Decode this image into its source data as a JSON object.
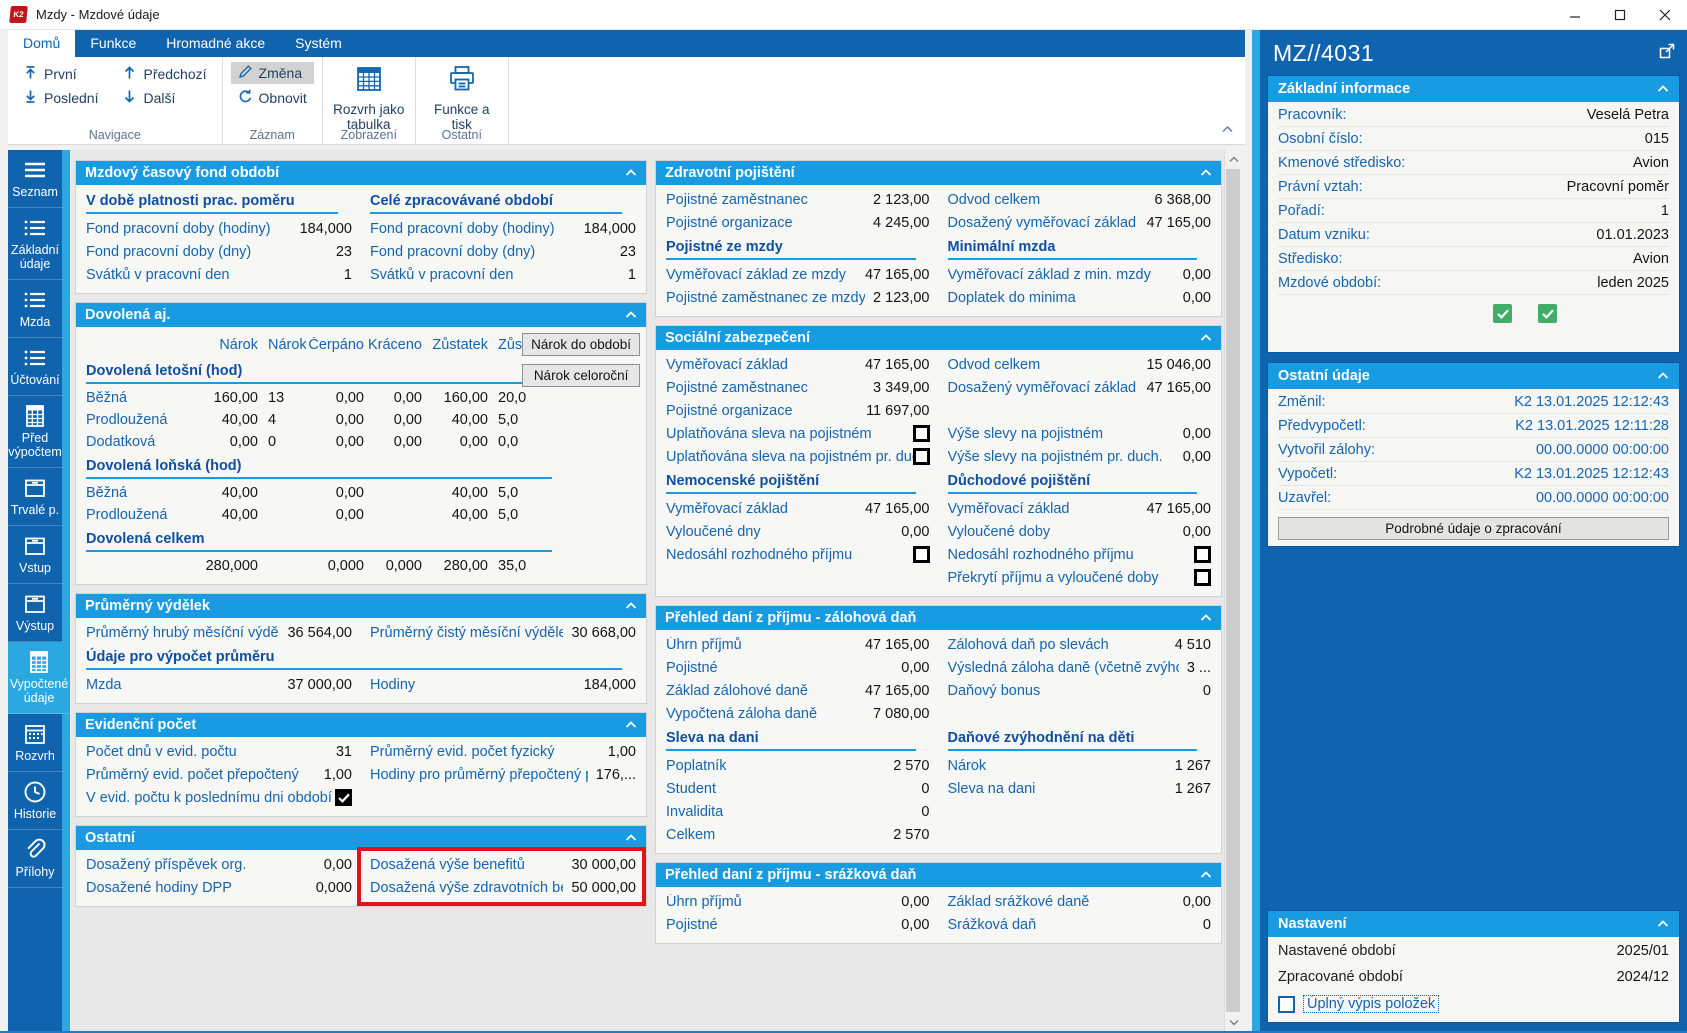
{
  "window": {
    "title": "Mzdy - Mzdové údaje",
    "logo": "K2"
  },
  "tabs": [
    "Domů",
    "Funkce",
    "Hromadné akce",
    "Systém"
  ],
  "active_tab": "Domů",
  "ribbon": {
    "nav_first": "První",
    "nav_last": "Poslední",
    "nav_prev": "Předchozí",
    "nav_next": "Další",
    "change": "Změna",
    "refresh": "Obnovit",
    "layout_table": "Rozvrh jako tabulka",
    "func_print": "Funkce a tisk",
    "groups": {
      "navigace": "Navigace",
      "zaznam": "Záznam",
      "zobrazeni": "Zobrazení",
      "ostatni": "Ostatní"
    }
  },
  "sidebar": {
    "items": [
      {
        "label": "Seznam",
        "icon": "menu-icon",
        "selected": false
      },
      {
        "label": "Základní údaje",
        "icon": "list-icon",
        "selected": false
      },
      {
        "label": "Mzda",
        "icon": "list-icon",
        "selected": false
      },
      {
        "label": "Účtování",
        "icon": "list-icon",
        "selected": false
      },
      {
        "label": "Před výpočtem",
        "icon": "calculator-icon",
        "selected": false
      },
      {
        "label": "Trvalé p.",
        "icon": "box-icon",
        "selected": false
      },
      {
        "label": "Vstup",
        "icon": "box-icon",
        "selected": false
      },
      {
        "label": "Výstup",
        "icon": "box-icon",
        "selected": false
      },
      {
        "label": "Vypočtené údaje",
        "icon": "calculator-icon",
        "selected": true
      },
      {
        "label": "Rozvrh",
        "icon": "calendar-icon",
        "selected": false
      },
      {
        "label": "Historie",
        "icon": "clock-icon",
        "selected": false
      },
      {
        "label": "Přílohy",
        "icon": "paperclip-icon",
        "selected": false
      }
    ]
  },
  "panels": {
    "fond": {
      "title": "Mzdový časový fond období",
      "left_heading": "V době platnosti prac. poměru",
      "right_heading": "Celé zpracovávané období",
      "left_rows": [
        {
          "l": "Fond pracovní doby (hodiny)",
          "v": "184,000"
        },
        {
          "l": "Fond pracovní doby (dny)",
          "v": "23"
        },
        {
          "l": "Svátků v pracovní den",
          "v": "1"
        }
      ],
      "right_rows": [
        {
          "l": "Fond pracovní doby (hodiny)",
          "v": "184,000"
        },
        {
          "l": "Fond pracovní doby (dny)",
          "v": "23"
        },
        {
          "l": "Svátků v pracovní den",
          "v": "1"
        }
      ]
    },
    "dovolena": {
      "title": "Dovolená aj.",
      "header": [
        [
          "",
          "Nárok",
          "Nárok do",
          "Čerpáno",
          "Kráceno",
          "Zůstatek",
          "Zůstatek (cca dny)"
        ]
      ],
      "buttons": {
        "do_obdobi": "Nárok do období",
        "celorocni": "Nárok celoroční"
      },
      "letosni_heading": "Dovolená letošní (hod)",
      "letosni": [
        [
          "Běžná",
          "160,00",
          "13",
          "0,00",
          "0,00",
          "160,00",
          "20,0"
        ],
        [
          "Prodloužená",
          "40,00",
          "4",
          "0,00",
          "0,00",
          "40,00",
          "5,0"
        ],
        [
          "Dodatková",
          "0,00",
          "0",
          "0,00",
          "0,00",
          "0,00",
          "0,0"
        ]
      ],
      "lonska_heading": "Dovolená loňská (hod)",
      "lonska": [
        [
          "Běžná",
          "40,00",
          "",
          "0,00",
          "",
          "40,00",
          "5,0"
        ],
        [
          "Prodloužená",
          "40,00",
          "",
          "0,00",
          "",
          "40,00",
          "5,0"
        ]
      ],
      "celkem_heading": "Dovolená celkem",
      "celkem": [
        [
          "",
          "280,000",
          "",
          "0,000",
          "0,000",
          "280,00",
          "35,0"
        ]
      ]
    },
    "prumerny": {
      "title": "Průměrný výdělek",
      "top_left": [
        {
          "l": "Průměrný hrubý měsíční výdělek",
          "v": "36 564,00"
        }
      ],
      "top_right": [
        {
          "l": "Průměrný čistý měsíční výdělek",
          "v": "30 668,00"
        }
      ],
      "sub_heading": "Údaje pro výpočet průměru",
      "sub_left": [
        {
          "l": "Mzda",
          "v": "37 000,00"
        }
      ],
      "sub_right": [
        {
          "l": "Hodiny",
          "v": "184,000"
        }
      ]
    },
    "evidencni": {
      "title": "Evidenční počet",
      "left_rows": [
        {
          "l": "Počet dnů v evid. počtu",
          "v": "31"
        },
        {
          "l": "Průměrný evid. počet přepočtený",
          "v": "1,00"
        },
        {
          "l": "V evid. počtu k poslednímu dni období",
          "cb": "black-checked"
        }
      ],
      "right_rows": [
        {
          "l": "Průměrný evid. počet fyzický",
          "v": "1,00"
        },
        {
          "l": "Hodiny pro průměrný přepočtený počet",
          "v": "176,..."
        }
      ]
    },
    "ostatni": {
      "title": "Ostatní",
      "left_rows": [
        {
          "l": "Dosažený příspěvek org.",
          "v": "0,00"
        },
        {
          "l": "Dosažené hodiny DPP",
          "v": "0,000"
        }
      ],
      "right_rows": [
        {
          "l": "Dosažená výše benefitů",
          "v": "30 000,00"
        },
        {
          "l": "Dosažená výše zdravotních benefitů",
          "v": "50 000,00"
        }
      ]
    },
    "zdravotni": {
      "title": "Zdravotní pojištění",
      "left_rows": [
        {
          "l": "Pojistné zaměstnanec",
          "v": "2 123,00"
        },
        {
          "l": "Pojistné organizace",
          "v": "4 245,00"
        }
      ],
      "right_rows": [
        {
          "l": "Odvod celkem",
          "v": "6 368,00"
        },
        {
          "l": "Dosažený vyměřovací základ",
          "v": "47 165,00"
        }
      ],
      "left_sub_heading": "Pojistné ze mzdy",
      "left_sub": [
        {
          "l": "Vyměřovací základ ze mzdy",
          "v": "47 165,00"
        },
        {
          "l": "Pojistné zaměstnanec ze mzdy",
          "v": "2 123,00"
        }
      ],
      "right_sub_heading": "Minimální mzda",
      "right_sub": [
        {
          "l": "Vyměřovací základ z min. mzdy",
          "v": "0,00"
        },
        {
          "l": "Doplatek do minima",
          "v": "0,00"
        }
      ]
    },
    "socialni": {
      "title": "Sociální zabezpečení",
      "left_rows": [
        {
          "l": "Vyměřovací základ",
          "v": "47 165,00"
        },
        {
          "l": "Pojistné zaměstnanec",
          "v": "3 349,00"
        },
        {
          "l": "Pojistné organizace",
          "v": "11 697,00"
        },
        {
          "l": "Uplatňována sleva na pojistném",
          "cb": "black"
        },
        {
          "l": "Uplatňována sleva na pojistném pr. duch.",
          "cb": "black"
        }
      ],
      "right_rows": [
        {
          "l": "Odvod celkem",
          "v": "15 046,00"
        },
        {
          "l": "Dosažený vyměřovací základ",
          "v": "47 165,00"
        },
        {
          "spacer": true
        },
        {
          "l": "Výše slevy na pojistném",
          "v": "0,00"
        },
        {
          "l": "Výše slevy na pojistném pr. duch.",
          "v": "0,00"
        }
      ],
      "left_sub_heading": "Nemocenské pojištění",
      "left_sub": [
        {
          "l": "Vyměřovací základ",
          "v": "47 165,00"
        },
        {
          "l": "Vyloučené dny",
          "v": "0,00"
        },
        {
          "l": "Nedosáhl rozhodného příjmu",
          "cb": "black"
        }
      ],
      "right_sub_heading": "Důchodové pojištění",
      "right_sub": [
        {
          "l": "Vyměřovací základ",
          "v": "47 165,00"
        },
        {
          "l": "Vyloučené doby",
          "v": "0,00"
        },
        {
          "l": "Nedosáhl rozhodného příjmu",
          "cb": "black"
        },
        {
          "l": "Překrytí příjmu a vyloučené doby",
          "cb": "black"
        }
      ]
    },
    "zalohova": {
      "title": "Přehled daní z příjmu - zálohová daň",
      "left_rows": [
        {
          "l": "Úhrn příjmů",
          "v": "47 165,00"
        },
        {
          "l": "Pojistné",
          "v": "0,00"
        },
        {
          "l": "Základ zálohové daně",
          "v": "47 165,00"
        },
        {
          "l": "Vypočtená záloha daně",
          "v": "7 080,00"
        }
      ],
      "right_rows": [
        {
          "l": "Zálohová daň po slevách",
          "v": "4 510"
        },
        {
          "l": "Výsledná záloha daně (včetně zvýhodnění)",
          "v": "3 ..."
        },
        {
          "l": "Daňový bonus",
          "v": "0"
        }
      ],
      "left_sub_heading": "Sleva na dani",
      "left_sub": [
        {
          "l": "Poplatník",
          "v": "2 570"
        },
        {
          "l": "Student",
          "v": "0"
        },
        {
          "l": "Invalidita",
          "v": "0"
        },
        {
          "l": "Celkem",
          "v": "2 570"
        }
      ],
      "right_sub_heading": "Daňové zvýhodnění na děti",
      "right_sub": [
        {
          "l": "Nárok",
          "v": "1 267"
        },
        {
          "l": "Sleva na dani",
          "v": "1 267"
        }
      ]
    },
    "srazkova": {
      "title": "Přehled daní z příjmu - srážková daň",
      "left_rows": [
        {
          "l": "Úhrn příjmů",
          "v": "0,00"
        },
        {
          "l": "Pojistné",
          "v": "0,00"
        }
      ],
      "right_rows": [
        {
          "l": "Základ srážkové daně",
          "v": "0,00"
        },
        {
          "l": "Srážková daň",
          "v": "0"
        }
      ]
    }
  },
  "right_panel": {
    "record_id": "MZ//4031",
    "zakladni": {
      "title": "Základní informace",
      "rows": [
        {
          "l": "Pracovník:",
          "v": "Veselá Petra"
        },
        {
          "l": "Osobní číslo:",
          "v": "015"
        },
        {
          "l": "Kmenové středisko:",
          "v": "Avion"
        },
        {
          "l": "Právní vztah:",
          "v": "Pracovní poměr"
        },
        {
          "l": "Pořadí:",
          "v": "1"
        },
        {
          "l": "Datum vzniku:",
          "v": "01.01.2023"
        },
        {
          "l": "Středisko:",
          "v": "Avion"
        },
        {
          "l": "Mzdové období:",
          "v": "leden 2025"
        }
      ]
    },
    "ostatni_udaje": {
      "title": "Ostatní údaje",
      "rows": [
        {
          "l": "Změnil:",
          "v": "K2 13.01.2025 12:12:43"
        },
        {
          "l": "Předvypočetl:",
          "v": "K2 13.01.2025 12:11:28"
        },
        {
          "l": "Vytvořil zálohy:",
          "v": "00.00.0000 00:00:00"
        },
        {
          "l": "Vypočetl:",
          "v": "K2 13.01.2025 12:12:43"
        },
        {
          "l": "Uzavřel:",
          "v": "00.00.0000 00:00:00"
        }
      ],
      "button": "Podrobné údaje o zpracování"
    },
    "nastaveni": {
      "title": "Nastavení",
      "rows": [
        {
          "l": "Nastavené období",
          "v": "2025/01"
        },
        {
          "l": "Zpracované období",
          "v": "2024/12"
        }
      ],
      "checkbox_label": "Úplný výpis položek"
    }
  },
  "colors": {
    "dark_blue": "#1063ad",
    "header_blue": "#199be1",
    "accent_blue": "#2ba7e2",
    "label_blue": "#1565ae",
    "heading_navy": "#0f4fa0",
    "highlight_red": "#e0151b",
    "check_green": "#41ad67"
  }
}
